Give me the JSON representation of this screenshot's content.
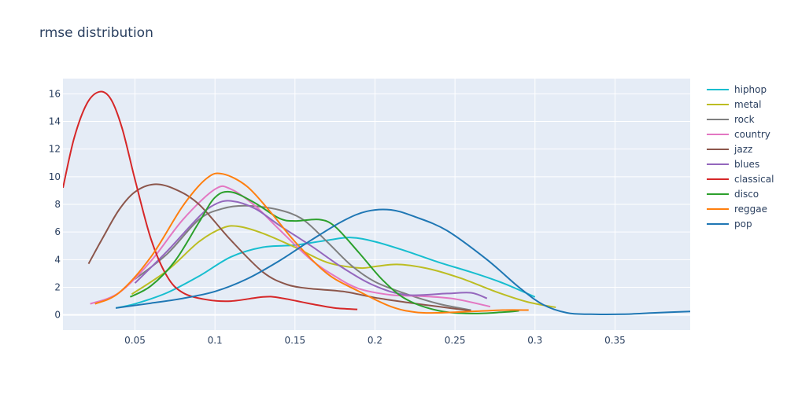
{
  "chart_data": {
    "type": "line",
    "title": "rmse distribution",
    "xlabel": "",
    "ylabel": "",
    "xlim": [
      0.005,
      0.397
    ],
    "ylim": [
      -1.1,
      17.1
    ],
    "x_ticks": [
      0.05,
      0.1,
      0.15,
      0.2,
      0.25,
      0.3,
      0.35
    ],
    "x_tick_labels": [
      "0.05",
      "0.1",
      "0.15",
      "0.2",
      "0.25",
      "0.3",
      "0.35"
    ],
    "y_ticks": [
      0,
      2,
      4,
      6,
      8,
      10,
      12,
      14,
      16
    ],
    "y_tick_labels": [
      "0",
      "2",
      "4",
      "6",
      "8",
      "10",
      "12",
      "14",
      "16"
    ],
    "grid": true,
    "legend_position": "right",
    "plot_background": "#e5ecf6",
    "series": [
      {
        "name": "hiphop",
        "color": "#17becf",
        "points": [
          [
            0.038,
            0.5
          ],
          [
            0.05,
            0.8
          ],
          [
            0.07,
            1.6
          ],
          [
            0.09,
            2.8
          ],
          [
            0.11,
            4.2
          ],
          [
            0.13,
            4.9
          ],
          [
            0.15,
            5.05
          ],
          [
            0.17,
            5.4
          ],
          [
            0.185,
            5.6
          ],
          [
            0.2,
            5.3
          ],
          [
            0.22,
            4.6
          ],
          [
            0.24,
            3.8
          ],
          [
            0.26,
            3.1
          ],
          [
            0.28,
            2.3
          ],
          [
            0.3,
            1.3
          ]
        ]
      },
      {
        "name": "metal",
        "color": "#bcbd22",
        "points": [
          [
            0.048,
            1.5
          ],
          [
            0.07,
            3.2
          ],
          [
            0.09,
            5.3
          ],
          [
            0.105,
            6.3
          ],
          [
            0.115,
            6.4
          ],
          [
            0.13,
            5.9
          ],
          [
            0.15,
            4.9
          ],
          [
            0.17,
            3.8
          ],
          [
            0.19,
            3.4
          ],
          [
            0.2,
            3.5
          ],
          [
            0.215,
            3.65
          ],
          [
            0.235,
            3.3
          ],
          [
            0.255,
            2.6
          ],
          [
            0.275,
            1.7
          ],
          [
            0.295,
            0.95
          ],
          [
            0.313,
            0.55
          ]
        ]
      },
      {
        "name": "rock",
        "color": "#7f7f7f",
        "points": [
          [
            0.05,
            2.6
          ],
          [
            0.07,
            4.4
          ],
          [
            0.09,
            6.9
          ],
          [
            0.105,
            7.7
          ],
          [
            0.12,
            7.9
          ],
          [
            0.14,
            7.6
          ],
          [
            0.155,
            6.9
          ],
          [
            0.17,
            5.3
          ],
          [
            0.185,
            3.6
          ],
          [
            0.2,
            2.4
          ],
          [
            0.22,
            1.5
          ],
          [
            0.24,
            0.8
          ],
          [
            0.26,
            0.35
          ]
        ]
      },
      {
        "name": "country",
        "color": "#e377c2",
        "points": [
          [
            0.022,
            0.8
          ],
          [
            0.04,
            1.6
          ],
          [
            0.06,
            3.9
          ],
          [
            0.08,
            6.9
          ],
          [
            0.1,
            9.1
          ],
          [
            0.11,
            9.1
          ],
          [
            0.125,
            7.9
          ],
          [
            0.14,
            6.2
          ],
          [
            0.16,
            4.0
          ],
          [
            0.175,
            2.8
          ],
          [
            0.19,
            1.9
          ],
          [
            0.21,
            1.45
          ],
          [
            0.23,
            1.35
          ],
          [
            0.25,
            1.15
          ],
          [
            0.272,
            0.6
          ]
        ]
      },
      {
        "name": "jazz",
        "color": "#8c564b",
        "points": [
          [
            0.021,
            3.7
          ],
          [
            0.03,
            5.6
          ],
          [
            0.04,
            7.6
          ],
          [
            0.05,
            8.9
          ],
          [
            0.062,
            9.45
          ],
          [
            0.075,
            9.1
          ],
          [
            0.09,
            8.0
          ],
          [
            0.11,
            5.4
          ],
          [
            0.13,
            3.1
          ],
          [
            0.145,
            2.2
          ],
          [
            0.16,
            1.9
          ],
          [
            0.18,
            1.7
          ],
          [
            0.2,
            1.25
          ],
          [
            0.22,
            0.9
          ],
          [
            0.24,
            0.6
          ],
          [
            0.26,
            0.3
          ]
        ]
      },
      {
        "name": "blues",
        "color": "#9467bd",
        "points": [
          [
            0.05,
            2.3
          ],
          [
            0.07,
            4.6
          ],
          [
            0.09,
            7.1
          ],
          [
            0.1,
            8.0
          ],
          [
            0.11,
            8.25
          ],
          [
            0.125,
            7.7
          ],
          [
            0.14,
            6.5
          ],
          [
            0.16,
            5.0
          ],
          [
            0.18,
            3.4
          ],
          [
            0.2,
            2.1
          ],
          [
            0.22,
            1.45
          ],
          [
            0.245,
            1.55
          ],
          [
            0.26,
            1.6
          ],
          [
            0.27,
            1.2
          ]
        ]
      },
      {
        "name": "classical",
        "color": "#d62728",
        "points": [
          [
            0.005,
            9.2
          ],
          [
            0.012,
            12.8
          ],
          [
            0.02,
            15.3
          ],
          [
            0.028,
            16.15
          ],
          [
            0.035,
            15.6
          ],
          [
            0.042,
            13.5
          ],
          [
            0.05,
            9.8
          ],
          [
            0.06,
            5.5
          ],
          [
            0.07,
            2.8
          ],
          [
            0.08,
            1.6
          ],
          [
            0.095,
            1.1
          ],
          [
            0.11,
            1.0
          ],
          [
            0.13,
            1.3
          ],
          [
            0.14,
            1.25
          ],
          [
            0.16,
            0.8
          ],
          [
            0.175,
            0.5
          ],
          [
            0.189,
            0.4
          ]
        ]
      },
      {
        "name": "disco",
        "color": "#2ca02c",
        "points": [
          [
            0.047,
            1.3
          ],
          [
            0.06,
            2.1
          ],
          [
            0.075,
            3.9
          ],
          [
            0.09,
            6.7
          ],
          [
            0.1,
            8.5
          ],
          [
            0.11,
            8.9
          ],
          [
            0.125,
            8.1
          ],
          [
            0.14,
            7.0
          ],
          [
            0.15,
            6.8
          ],
          [
            0.165,
            6.9
          ],
          [
            0.175,
            6.4
          ],
          [
            0.19,
            4.5
          ],
          [
            0.205,
            2.5
          ],
          [
            0.22,
            1.1
          ],
          [
            0.24,
            0.3
          ],
          [
            0.26,
            0.1
          ],
          [
            0.28,
            0.2
          ],
          [
            0.29,
            0.3
          ]
        ]
      },
      {
        "name": "reggae",
        "color": "#ff7f0e",
        "points": [
          [
            0.025,
            0.8
          ],
          [
            0.04,
            1.6
          ],
          [
            0.06,
            4.2
          ],
          [
            0.08,
            7.9
          ],
          [
            0.095,
            9.9
          ],
          [
            0.105,
            10.2
          ],
          [
            0.12,
            9.3
          ],
          [
            0.135,
            7.4
          ],
          [
            0.15,
            5.3
          ],
          [
            0.17,
            3.0
          ],
          [
            0.19,
            1.7
          ],
          [
            0.21,
            0.6
          ],
          [
            0.225,
            0.2
          ],
          [
            0.24,
            0.15
          ],
          [
            0.26,
            0.25
          ],
          [
            0.28,
            0.35
          ],
          [
            0.296,
            0.35
          ]
        ]
      },
      {
        "name": "pop",
        "color": "#1f77b4",
        "points": [
          [
            0.038,
            0.5
          ],
          [
            0.06,
            0.85
          ],
          [
            0.08,
            1.2
          ],
          [
            0.1,
            1.7
          ],
          [
            0.12,
            2.6
          ],
          [
            0.14,
            3.9
          ],
          [
            0.16,
            5.4
          ],
          [
            0.18,
            6.8
          ],
          [
            0.195,
            7.5
          ],
          [
            0.21,
            7.6
          ],
          [
            0.225,
            7.1
          ],
          [
            0.245,
            6.1
          ],
          [
            0.27,
            4.0
          ],
          [
            0.29,
            2.0
          ],
          [
            0.305,
            0.75
          ],
          [
            0.32,
            0.15
          ],
          [
            0.335,
            0.05
          ],
          [
            0.355,
            0.05
          ],
          [
            0.375,
            0.15
          ],
          [
            0.397,
            0.25
          ]
        ]
      }
    ]
  }
}
